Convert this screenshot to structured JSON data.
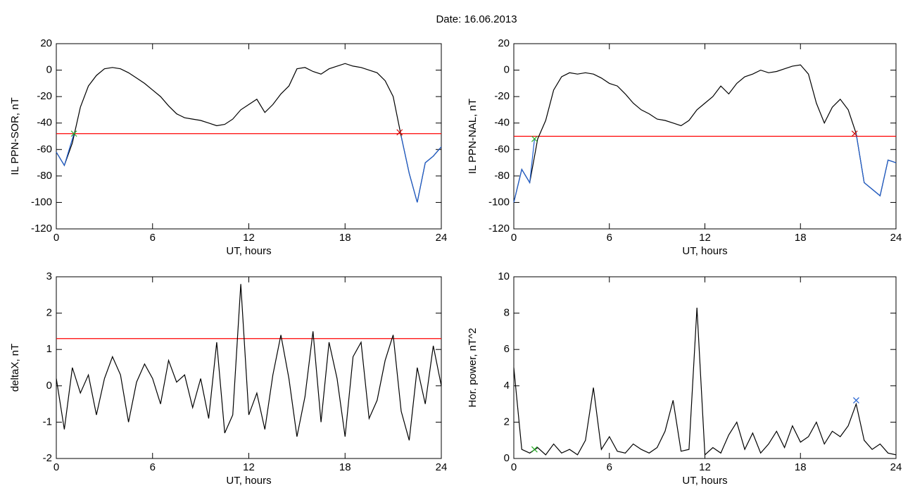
{
  "title": "Date:  16.06.2013",
  "chart_data": [
    {
      "type": "line",
      "ylabel": "IL PPN-SOR, nT",
      "xlabel": "UT, hours",
      "xlim": [
        0,
        24
      ],
      "xticks": [
        0,
        6,
        12,
        18,
        24
      ],
      "ylim": [
        -120,
        20
      ],
      "yticks": [
        -120,
        -100,
        -80,
        -60,
        -40,
        -20,
        0,
        20
      ],
      "series": [
        {
          "color": "#000000",
          "x": [
            0,
            0.5,
            1,
            1.5,
            2,
            2.5,
            3,
            3.5,
            4,
            4.5,
            5,
            5.5,
            6,
            6.5,
            7,
            7.5,
            8,
            8.5,
            9,
            9.5,
            10,
            10.5,
            11,
            11.5,
            12,
            12.5,
            13,
            13.5,
            14,
            14.5,
            15,
            15.5,
            16,
            16.5,
            17,
            17.5,
            18,
            18.5,
            19,
            19.5,
            20,
            20.5,
            21,
            21.5,
            22,
            22.5,
            23,
            23.5,
            24
          ],
          "values": [
            -62,
            -72,
            -55,
            -28,
            -12,
            -4,
            1,
            2,
            1,
            -2,
            -6,
            -10,
            -15,
            -20,
            -27,
            -33,
            -36,
            -37,
            -38,
            -40,
            -42,
            -41,
            -37,
            -30,
            -26,
            -22,
            -32,
            -26,
            -18,
            -12,
            1,
            2,
            -1,
            -3,
            1,
            3,
            5,
            3,
            2,
            0,
            -2,
            -8,
            -20,
            -50,
            -78,
            -100,
            -70,
            -65,
            -58
          ]
        },
        {
          "color": "#1f5fd0",
          "x": [
            0,
            0.5,
            1.1,
            null,
            21.5,
            22,
            22.5,
            23,
            23.5,
            24
          ],
          "values": [
            -62,
            -72,
            -48,
            null,
            -50,
            -78,
            -100,
            -70,
            -65,
            -58
          ]
        }
      ],
      "threshold": {
        "value": -48,
        "color": "#ff0000"
      },
      "markers": [
        {
          "x": 1.1,
          "y": -48,
          "color": "#22aa22"
        },
        {
          "x": 21.4,
          "y": -47,
          "color": "#cc0000"
        }
      ]
    },
    {
      "type": "line",
      "ylabel": "IL PPN-NAL, nT",
      "xlabel": "UT, hours",
      "xlim": [
        0,
        24
      ],
      "xticks": [
        0,
        6,
        12,
        18,
        24
      ],
      "ylim": [
        -120,
        20
      ],
      "yticks": [
        -120,
        -100,
        -80,
        -60,
        -40,
        -20,
        0,
        20
      ],
      "series": [
        {
          "color": "#000000",
          "x": [
            0,
            0.5,
            1,
            1.5,
            2,
            2.5,
            3,
            3.5,
            4,
            4.5,
            5,
            5.5,
            6,
            6.5,
            7,
            7.5,
            8,
            8.5,
            9,
            9.5,
            10,
            10.5,
            11,
            11.5,
            12,
            12.5,
            13,
            13.5,
            14,
            14.5,
            15,
            15.5,
            16,
            16.5,
            17,
            17.5,
            18,
            18.5,
            19,
            19.5,
            20,
            20.5,
            21,
            21.5,
            22,
            22.5,
            23,
            23.5,
            24
          ],
          "values": [
            -100,
            -75,
            -85,
            -52,
            -38,
            -15,
            -5,
            -2,
            -3,
            -2,
            -3,
            -6,
            -10,
            -12,
            -18,
            -25,
            -30,
            -33,
            -37,
            -38,
            -40,
            -42,
            -38,
            -30,
            -25,
            -20,
            -12,
            -18,
            -10,
            -5,
            -3,
            0,
            -2,
            -1,
            1,
            3,
            4,
            -3,
            -25,
            -40,
            -28,
            -22,
            -30,
            -48,
            -85,
            -90,
            -95,
            -68,
            -70
          ]
        },
        {
          "color": "#1f5fd0",
          "x": [
            0,
            0.5,
            1,
            1.3,
            null,
            21.5,
            22,
            22.5,
            23,
            23.5,
            24
          ],
          "values": [
            -100,
            -75,
            -85,
            -52,
            null,
            -48,
            -85,
            -90,
            -95,
            -68,
            -70
          ]
        }
      ],
      "threshold": {
        "value": -50,
        "color": "#ff0000"
      },
      "markers": [
        {
          "x": 1.3,
          "y": -52,
          "color": "#22aa22"
        },
        {
          "x": 21.4,
          "y": -48,
          "color": "#cc0000"
        }
      ]
    },
    {
      "type": "line",
      "ylabel": "deltaX, nT",
      "xlabel": "UT, hours",
      "xlim": [
        0,
        24
      ],
      "xticks": [
        0,
        6,
        12,
        18,
        24
      ],
      "ylim": [
        -2,
        3
      ],
      "yticks": [
        -2,
        -1,
        0,
        1,
        2,
        3
      ],
      "series": [
        {
          "color": "#000000",
          "x": [
            0,
            0.5,
            1,
            1.5,
            2,
            2.5,
            3,
            3.5,
            4,
            4.5,
            5,
            5.5,
            6,
            6.5,
            7,
            7.5,
            8,
            8.5,
            9,
            9.5,
            10,
            10.5,
            11,
            11.5,
            12,
            12.5,
            13,
            13.5,
            14,
            14.5,
            15,
            15.5,
            16,
            16.5,
            17,
            17.5,
            18,
            18.5,
            19,
            19.5,
            20,
            20.5,
            21,
            21.5,
            22,
            22.5,
            23,
            23.5,
            24
          ],
          "values": [
            0.2,
            -1.2,
            0.5,
            -0.2,
            0.3,
            -0.8,
            0.2,
            0.8,
            0.3,
            -1.0,
            0.1,
            0.6,
            0.2,
            -0.5,
            0.7,
            0.1,
            0.3,
            -0.6,
            0.2,
            -0.9,
            1.2,
            -1.3,
            -0.8,
            2.8,
            -0.8,
            -0.2,
            -1.2,
            0.3,
            1.4,
            0.2,
            -1.4,
            -0.3,
            1.5,
            -1.0,
            1.2,
            0.2,
            -1.4,
            0.8,
            1.2,
            -0.9,
            -0.4,
            0.7,
            1.4,
            -0.7,
            -1.5,
            0.5,
            -0.5,
            1.1,
            0.0
          ]
        }
      ],
      "threshold": {
        "value": 1.3,
        "color": "#ff0000"
      },
      "markers": []
    },
    {
      "type": "line",
      "ylabel": "Hor. power, nT^2",
      "xlabel": "UT, hours",
      "xlim": [
        0,
        24
      ],
      "xticks": [
        0,
        6,
        12,
        18,
        24
      ],
      "ylim": [
        0,
        10
      ],
      "yticks": [
        0,
        2,
        4,
        6,
        8,
        10
      ],
      "series": [
        {
          "color": "#000000",
          "x": [
            0,
            0.5,
            1,
            1.5,
            2,
            2.5,
            3,
            3.5,
            4,
            4.5,
            5,
            5.5,
            6,
            6.5,
            7,
            7.5,
            8,
            8.5,
            9,
            9.5,
            10,
            10.5,
            11,
            11.5,
            12,
            12.5,
            13,
            13.5,
            14,
            14.5,
            15,
            15.5,
            16,
            16.5,
            17,
            17.5,
            18,
            18.5,
            19,
            19.5,
            20,
            20.5,
            21,
            21.5,
            22,
            22.5,
            23,
            23.5,
            24
          ],
          "values": [
            5,
            0.5,
            0.3,
            0.6,
            0.2,
            0.8,
            0.3,
            0.5,
            0.2,
            1.0,
            3.9,
            0.5,
            1.2,
            0.4,
            0.3,
            0.8,
            0.5,
            0.3,
            0.6,
            1.5,
            3.2,
            0.4,
            0.5,
            8.3,
            0.2,
            0.6,
            0.3,
            1.3,
            2.0,
            0.5,
            1.4,
            0.3,
            0.8,
            1.5,
            0.6,
            1.8,
            0.9,
            1.2,
            2.0,
            0.8,
            1.5,
            1.2,
            1.8,
            3.0,
            1.0,
            0.5,
            0.8,
            0.3,
            0.2
          ]
        }
      ],
      "markers": [
        {
          "x": 21.5,
          "y": 3.2,
          "color": "#1f5fd0"
        },
        {
          "x": 1.3,
          "y": 0.5,
          "color": "#22aa22"
        }
      ]
    }
  ]
}
